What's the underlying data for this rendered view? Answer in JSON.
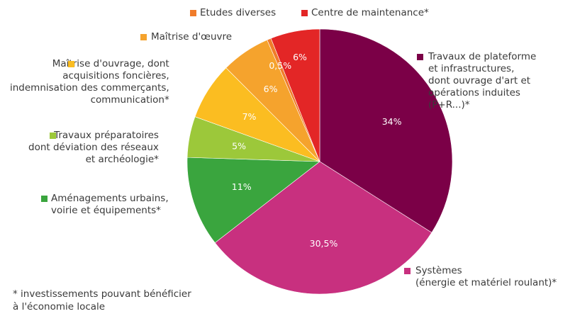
{
  "chart_data": {
    "type": "pie",
    "start_angle_deg": 0,
    "direction": "clockwise",
    "slices": [
      {
        "name": "Travaux de plateforme\net infrastructures,\ndont ouvrage d'art et\nopérations induites\n(P+R...)*",
        "value": 34,
        "label": "34%",
        "color": "#7b0047"
      },
      {
        "name": "Systèmes\n(énergie et matériel roulant)*",
        "value": 30.5,
        "label": "30,5%",
        "color": "#c8307f"
      },
      {
        "name": "Aménagements urbains,\nvoirie et équipements*",
        "value": 11,
        "label": "11%",
        "color": "#3aa53e"
      },
      {
        "name": "Travaux préparatoires\ndont déviation des réseaux\net archéologie*",
        "value": 5,
        "label": "5%",
        "color": "#9cc83a"
      },
      {
        "name": "Maîtrise d'ouvrage, dont\nacquisitions foncières,\nindemnisation des commerçants,\ncommunication*",
        "value": 7,
        "label": "7%",
        "color": "#fbbd21"
      },
      {
        "name": "Maîtrise d'œuvre",
        "value": 6,
        "label": "6%",
        "color": "#f5a32d"
      },
      {
        "name": "Etudes diverses",
        "value": 0.5,
        "label": "0,5%",
        "color": "#f07c2a"
      },
      {
        "name": "Centre de maintenance*",
        "value": 6,
        "label": "6%",
        "color": "#e32626"
      }
    ]
  },
  "footnote": "* investissements pouvant bénéficier\nà l'économie locale"
}
